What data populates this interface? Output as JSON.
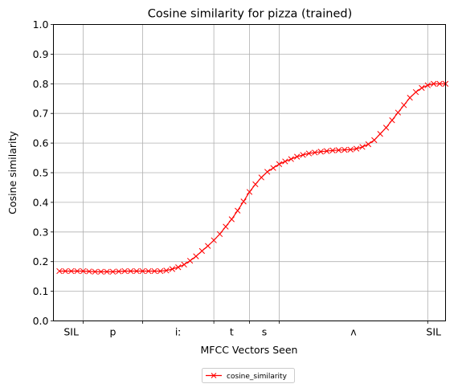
{
  "chart_data": {
    "type": "line",
    "title": "Cosine similarity for pizza (trained)",
    "xlabel": "MFCC Vectors Seen",
    "ylabel": "Cosine similarity",
    "ylim": [
      0,
      1
    ],
    "yticks": [
      "0.0",
      "0.1",
      "0.2",
      "0.3",
      "0.4",
      "0.5",
      "0.6",
      "0.7",
      "0.8",
      "0.9",
      "1.0"
    ],
    "xlim": [
      -1,
      65
    ],
    "grid": true,
    "segment_boundaries": [
      4,
      14,
      26,
      32,
      37,
      62
    ],
    "segment_labels": [
      {
        "label": "SIL",
        "x": 2
      },
      {
        "label": "p",
        "x": 9
      },
      {
        "label": "iː",
        "x": 20
      },
      {
        "label": "t",
        "x": 29
      },
      {
        "label": "s",
        "x": 34.5
      },
      {
        "label": "ʌ",
        "x": 49.5
      },
      {
        "label": "SIL",
        "x": 63
      }
    ],
    "legend": {
      "position": "below",
      "entries": [
        "cosine_similarity"
      ]
    },
    "series": [
      {
        "name": "cosine_similarity",
        "color": "#ff0000",
        "marker": "x",
        "x": [
          0,
          1,
          2,
          3,
          4,
          5,
          6,
          7,
          8,
          9,
          10,
          11,
          12,
          13,
          14,
          15,
          16,
          17,
          18,
          19,
          20,
          21,
          22,
          23,
          24,
          25,
          26,
          27,
          28,
          29,
          30,
          31,
          32,
          33,
          34,
          35,
          36,
          37,
          38,
          39,
          40,
          41,
          42,
          43,
          44,
          45,
          46,
          47,
          48,
          49,
          50,
          51,
          52,
          53,
          54,
          55,
          56,
          57,
          58,
          59,
          60,
          61,
          62,
          63,
          64,
          65
        ],
        "values": [
          0.168,
          0.168,
          0.168,
          0.168,
          0.168,
          0.167,
          0.166,
          0.166,
          0.166,
          0.166,
          0.167,
          0.168,
          0.168,
          0.168,
          0.168,
          0.168,
          0.168,
          0.168,
          0.17,
          0.175,
          0.181,
          0.19,
          0.203,
          0.218,
          0.236,
          0.253,
          0.272,
          0.293,
          0.318,
          0.343,
          0.372,
          0.403,
          0.435,
          0.461,
          0.484,
          0.503,
          0.516,
          0.529,
          0.538,
          0.546,
          0.554,
          0.56,
          0.565,
          0.568,
          0.571,
          0.573,
          0.575,
          0.576,
          0.577,
          0.578,
          0.581,
          0.587,
          0.596,
          0.61,
          0.631,
          0.652,
          0.677,
          0.703,
          0.728,
          0.753,
          0.772,
          0.786,
          0.795,
          0.8,
          0.8,
          0.8
        ]
      }
    ]
  }
}
